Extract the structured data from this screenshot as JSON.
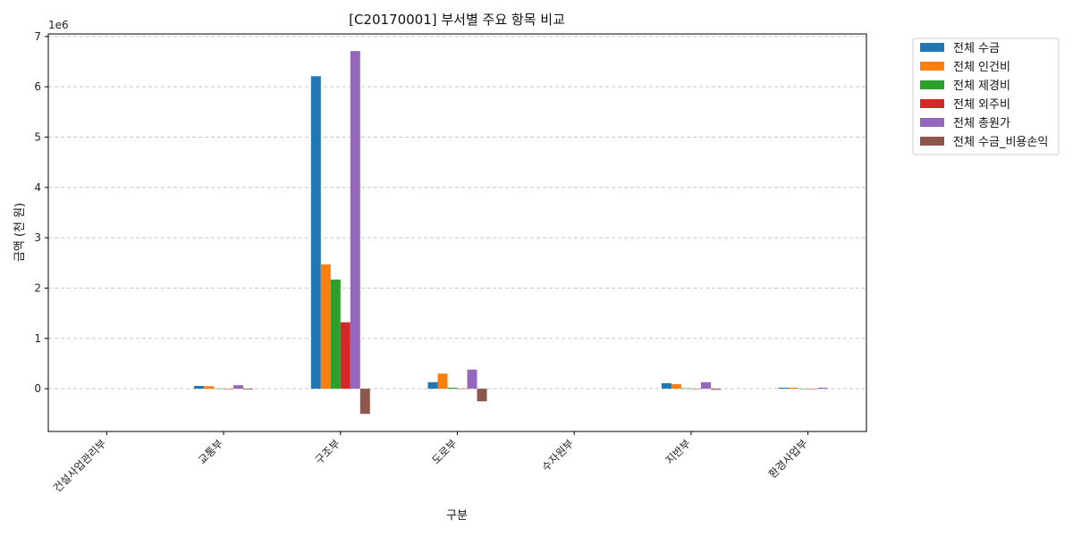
{
  "chart_data": {
    "type": "bar",
    "title": "[C20170001] 부서별 주요 항목 비교",
    "xlabel": "구분",
    "ylabel": "금액 (천 원)",
    "y_offset_label": "1e6",
    "y_scale": 1000000,
    "ylim": [
      -850000,
      7050000
    ],
    "yticks": [
      0,
      1,
      2,
      3,
      4,
      5,
      6,
      7
    ],
    "grid": true,
    "legend_position": "outside-top-right",
    "categories": [
      "건설사업관리부",
      "교통부",
      "구조부",
      "도로부",
      "수자원부",
      "지반부",
      "환경사업부"
    ],
    "series": [
      {
        "name": "전체 수금",
        "color": "#1f77b4",
        "values": [
          0,
          55000,
          6210000,
          130000,
          0,
          110000,
          20000
        ]
      },
      {
        "name": "전체 인건비",
        "color": "#ff7f0e",
        "values": [
          0,
          50000,
          2470000,
          300000,
          0,
          90000,
          20000
        ]
      },
      {
        "name": "전체 제경비",
        "color": "#2ca02c",
        "values": [
          0,
          5000,
          2170000,
          20000,
          0,
          10000,
          3000
        ]
      },
      {
        "name": "전체 외주비",
        "color": "#d62728",
        "values": [
          0,
          3000,
          1320000,
          5000,
          0,
          3000,
          2000
        ]
      },
      {
        "name": "전체 총원가",
        "color": "#9467bd",
        "values": [
          0,
          70000,
          6710000,
          380000,
          0,
          130000,
          20000
        ]
      },
      {
        "name": "전체 수금_비용손익",
        "color": "#8c564b",
        "values": [
          0,
          -15000,
          -500000,
          -250000,
          0,
          -20000,
          0
        ]
      }
    ]
  }
}
